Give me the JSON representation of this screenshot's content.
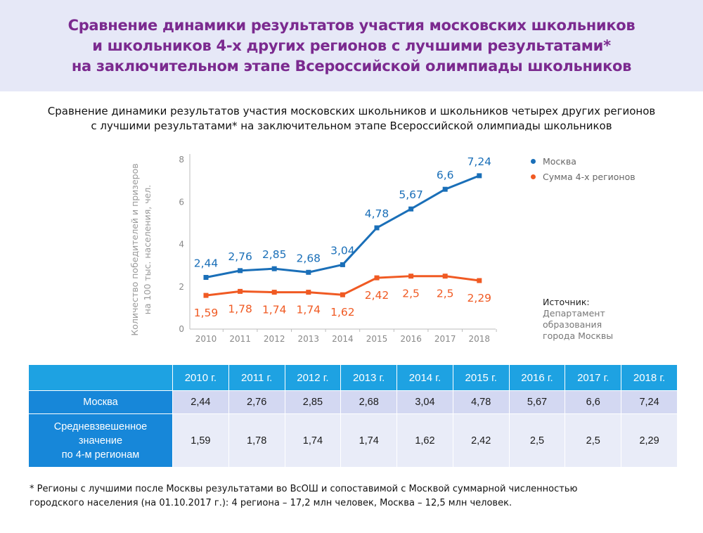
{
  "header": {
    "lines": [
      "Сравнение динамики результатов участия московских школьников",
      "и школьников 4-х других регионов с лучшими результатами*",
      "на заключительном этапе Всероссийской олимпиады школьников"
    ]
  },
  "subtitle": {
    "line1": "Сравнение динамики результатов участия московских школьников и школьников четырех других регионов",
    "line2": "с лучшими результатами* на заключительном этапе Всероссийской олимпиады школьников"
  },
  "chart_data": {
    "type": "line",
    "x": [
      "2010",
      "2011",
      "2012",
      "2013",
      "2014",
      "2015",
      "2016",
      "2017",
      "2018"
    ],
    "ylabel_lines": [
      "Количество победителей и призеров",
      "на 100 тыс. населения, чел."
    ],
    "ylim": [
      0,
      8
    ],
    "yticks": [
      "0",
      "2",
      "4",
      "6",
      "8"
    ],
    "grid": false,
    "legend_position": "top-right",
    "series": [
      {
        "name": "Москва",
        "color": "#1a6fb8",
        "values": [
          2.44,
          2.76,
          2.85,
          2.68,
          3.04,
          4.78,
          5.67,
          6.6,
          7.24
        ],
        "labels": [
          "2,44",
          "2,76",
          "2,85",
          "2,68",
          "3,04",
          "4,78",
          "5,67",
          "6,6",
          "7,24"
        ]
      },
      {
        "name": "Сумма 4-х регионов",
        "color": "#f05a23",
        "values": [
          1.59,
          1.78,
          1.74,
          1.74,
          1.62,
          2.42,
          2.5,
          2.5,
          2.29
        ],
        "labels": [
          "1,59",
          "1,78",
          "1,74",
          "1,74",
          "1,62",
          "2,42",
          "2,5",
          "2,5",
          "2,29"
        ]
      }
    ]
  },
  "source": {
    "title": "Источник:",
    "lines": [
      "Департамент",
      "образования",
      "города Москвы"
    ]
  },
  "table": {
    "headers": [
      "2010 г.",
      "2011 г.",
      "2012 г.",
      "2013 г.",
      "2014 г.",
      "2015 г.",
      "2016 г.",
      "2017 г.",
      "2018 г."
    ],
    "rows": [
      {
        "label_lines": [
          "Москва"
        ],
        "values": [
          "2,44",
          "2,76",
          "2,85",
          "2,68",
          "3,04",
          "4,78",
          "5,67",
          "6,6",
          "7,24"
        ]
      },
      {
        "label_lines": [
          "Средневзвешенное",
          "значение",
          "по 4-м регионам"
        ],
        "values": [
          "1,59",
          "1,78",
          "1,74",
          "1,74",
          "1,62",
          "2,42",
          "2,5",
          "2,5",
          "2,29"
        ]
      }
    ]
  },
  "footnote": {
    "line1": "* Регионы с лучшими после Москвы результатами во ВсОШ и сопоставимой с Москвой суммарной численностью",
    "line2": "городского населения (на 01.10.2017 г.):  4 региона – 17,2 млн человек, Москва – 12,5 млн человек."
  }
}
